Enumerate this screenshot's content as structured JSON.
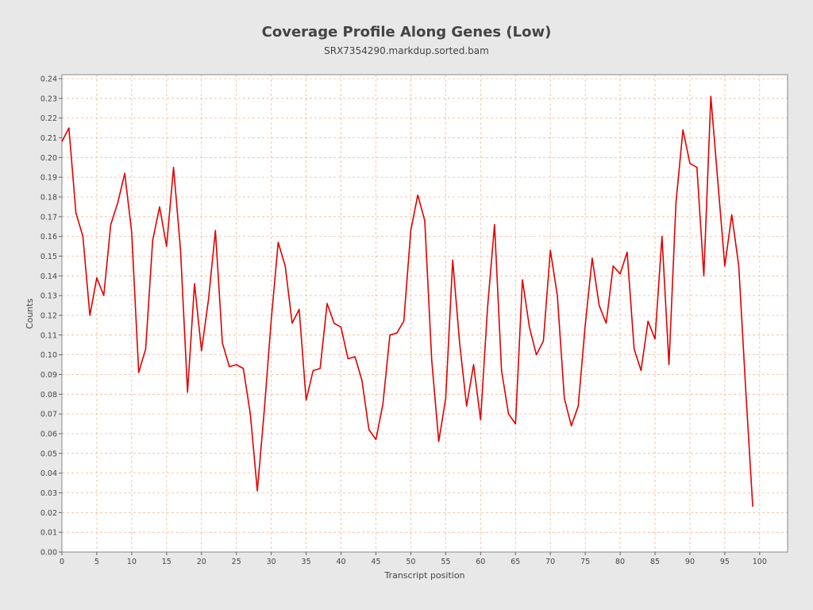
{
  "chart_data": {
    "type": "line",
    "title": "Coverage Profile Along Genes (Low)",
    "subtitle": "SRX7354290.markdup.sorted.bam",
    "xlabel": "Transcript position",
    "ylabel": "Counts",
    "xlim": [
      0,
      104
    ],
    "ylim": [
      0,
      0.242
    ],
    "xticks": [
      0,
      5,
      10,
      15,
      20,
      25,
      30,
      35,
      40,
      45,
      50,
      55,
      60,
      65,
      70,
      75,
      80,
      85,
      90,
      95,
      100
    ],
    "yticks": [
      "0.00",
      "0.01",
      "0.02",
      "0.03",
      "0.04",
      "0.05",
      "0.06",
      "0.07",
      "0.08",
      "0.09",
      "0.10",
      "0.11",
      "0.12",
      "0.13",
      "0.14",
      "0.15",
      "0.16",
      "0.17",
      "0.18",
      "0.19",
      "0.20",
      "0.21",
      "0.22",
      "0.23",
      "0.24"
    ],
    "grid": true,
    "series": [
      {
        "x": [
          0,
          1,
          2,
          3,
          4,
          5,
          6,
          7,
          8,
          9,
          10,
          11,
          12,
          13,
          14,
          15,
          16,
          17,
          18,
          19,
          20,
          21,
          22,
          23,
          24,
          25,
          26,
          27,
          28,
          29,
          30,
          31,
          32,
          33,
          34,
          35,
          36,
          37,
          38,
          39,
          40,
          41,
          42,
          43,
          44,
          45,
          46,
          47,
          48,
          49,
          50,
          51,
          52,
          53,
          54,
          55,
          56,
          57,
          58,
          59,
          60,
          61,
          62,
          63,
          64,
          65,
          66,
          67,
          68,
          69,
          70,
          71,
          72,
          73,
          74,
          75,
          76,
          77,
          78,
          79,
          80,
          81,
          82,
          83,
          84,
          85,
          86,
          87,
          88,
          89,
          90,
          91,
          92,
          93,
          94,
          95,
          96,
          97,
          98,
          99
        ],
        "values": [
          0.208,
          0.215,
          0.172,
          0.16,
          0.12,
          0.139,
          0.13,
          0.166,
          0.177,
          0.192,
          0.162,
          0.091,
          0.103,
          0.158,
          0.175,
          0.155,
          0.195,
          0.153,
          0.081,
          0.136,
          0.102,
          0.128,
          0.163,
          0.106,
          0.094,
          0.095,
          0.093,
          0.07,
          0.031,
          0.072,
          0.118,
          0.157,
          0.145,
          0.116,
          0.123,
          0.077,
          0.092,
          0.093,
          0.126,
          0.116,
          0.114,
          0.098,
          0.099,
          0.087,
          0.062,
          0.057,
          0.075,
          0.11,
          0.111,
          0.117,
          0.163,
          0.181,
          0.168,
          0.097,
          0.056,
          0.078,
          0.148,
          0.106,
          0.074,
          0.095,
          0.067,
          0.124,
          0.166,
          0.092,
          0.07,
          0.065,
          0.138,
          0.114,
          0.1,
          0.107,
          0.153,
          0.13,
          0.078,
          0.064,
          0.074,
          0.115,
          0.149,
          0.125,
          0.116,
          0.145,
          0.141,
          0.152,
          0.103,
          0.092,
          0.117,
          0.108,
          0.16,
          0.095,
          0.177,
          0.214,
          0.197,
          0.195,
          0.14,
          0.231,
          0.188,
          0.145,
          0.171,
          0.145,
          0.082,
          0.023
        ],
        "color": "#e00000"
      }
    ],
    "colors": {
      "background": "#e8e8e8",
      "plot_background": "#ffffff",
      "grid": "#f0b89a",
      "line": "#e00000",
      "text": "#444444"
    }
  }
}
